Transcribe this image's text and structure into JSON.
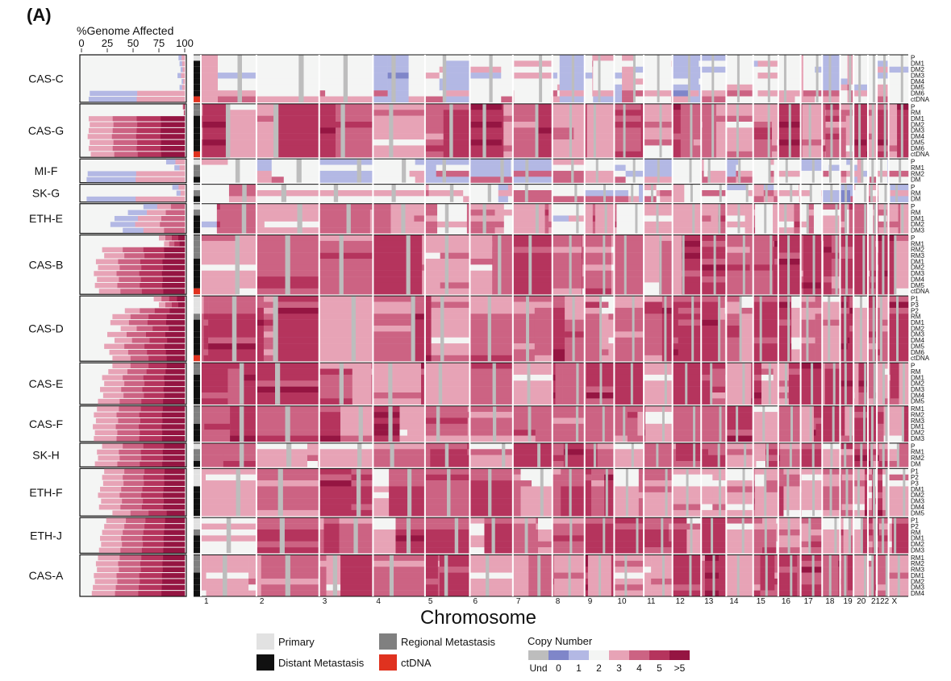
{
  "figure": {
    "panel_label": "(A)",
    "pct_axis_title": "%Genome Affected",
    "pct_ticks": [
      "0",
      "25",
      "50",
      "75",
      "100"
    ],
    "xlabel": "Chromosome",
    "legend_sample_types": [
      {
        "label": "Primary",
        "color": "#e2e2e2"
      },
      {
        "label": "Regional Metastasis",
        "color": "#808080"
      },
      {
        "label": "Distant Metastasis",
        "color": "#111111"
      },
      {
        "label": "ctDNA",
        "color": "#e0321f"
      }
    ],
    "legend_cn_title": "Copy Number",
    "legend_cn": [
      {
        "label": "Und",
        "color": "#bdbdbd"
      },
      {
        "label": "0",
        "color": "#7f86c9"
      },
      {
        "label": "1",
        "color": "#b3b8e4"
      },
      {
        "label": "2",
        "color": "#f4f5f4"
      },
      {
        "label": "3",
        "color": "#e7a3b6"
      },
      {
        "label": "4",
        "color": "#cc6383"
      },
      {
        "label": "5",
        "color": "#b5345d"
      },
      {
        "label": ">5",
        "color": "#951542"
      }
    ]
  },
  "chart_data": {
    "type": "heatmap",
    "title": "",
    "xlabel": "Chromosome",
    "chromosomes": [
      "1",
      "2",
      "3",
      "4",
      "5",
      "6",
      "7",
      "8",
      "9",
      "10",
      "11",
      "12",
      "13",
      "14",
      "15",
      "16",
      "17",
      "18",
      "19",
      "20",
      "21",
      "22",
      "X"
    ],
    "pct_axis": {
      "label": "%Genome Affected",
      "range": [
        0,
        100
      ],
      "ticks": [
        0,
        25,
        50,
        75,
        100
      ]
    },
    "patients": [
      {
        "name": "CAS-C",
        "samples": [
          "P",
          "DM1",
          "DM2",
          "DM3",
          "DM4",
          "DM5",
          "DM6",
          "ctDNA"
        ],
        "types": [
          "P",
          "D",
          "D",
          "D",
          "D",
          "D",
          "D",
          "C"
        ],
        "pct": [
          6,
          5,
          4,
          7,
          3,
          5,
          92,
          93
        ],
        "level": 1
      },
      {
        "name": "CAS-G",
        "samples": [
          "P",
          "RM",
          "DM1",
          "DM2",
          "DM3",
          "DM4",
          "DM5",
          "DM6",
          "ctDNA"
        ],
        "types": [
          "R",
          "R",
          "D",
          "D",
          "D",
          "D",
          "D",
          "D",
          "C"
        ],
        "pct": [
          2,
          1,
          93,
          92,
          93,
          94,
          92,
          93,
          91
        ],
        "level": 4
      },
      {
        "name": "MI-F",
        "samples": [
          "P",
          "RM1",
          "RM2",
          "DM"
        ],
        "types": [
          "P",
          "R",
          "R",
          "D"
        ],
        "pct": [
          18,
          10,
          94,
          95
        ],
        "level": 2
      },
      {
        "name": "SK-G",
        "samples": [
          "P",
          "RM",
          "DM"
        ],
        "types": [
          "P",
          "R",
          "D"
        ],
        "pct": [
          12,
          8,
          95
        ],
        "level": 2
      },
      {
        "name": "ETH-E",
        "samples": [
          "P",
          "RM",
          "DM1",
          "DM2",
          "DM3"
        ],
        "types": [
          "P",
          "R",
          "D",
          "D",
          "D"
        ],
        "pct": [
          40,
          55,
          68,
          72,
          60
        ],
        "level": 3
      },
      {
        "name": "CAS-B",
        "samples": [
          "P",
          "RM1",
          "RM2",
          "RM3",
          "DM1",
          "DM2",
          "DM3",
          "DM4",
          "DM5",
          "ctDNA"
        ],
        "types": [
          "R",
          "R",
          "R",
          "R",
          "D",
          "D",
          "D",
          "D",
          "D",
          "C"
        ],
        "pct": [
          25,
          20,
          80,
          78,
          86,
          84,
          88,
          85,
          87,
          83
        ],
        "level": 4
      },
      {
        "name": "CAS-D",
        "samples": [
          "P1",
          "P3",
          "P2",
          "RM",
          "DM1",
          "DM2",
          "DM3",
          "DM4",
          "DM5",
          "DM6",
          "ctDNA"
        ],
        "types": [
          "P",
          "P",
          "P",
          "R",
          "D",
          "D",
          "D",
          "D",
          "D",
          "D",
          "C"
        ],
        "pct": [
          30,
          25,
          58,
          70,
          72,
          62,
          75,
          68,
          78,
          73,
          70
        ],
        "level": 4
      },
      {
        "name": "CAS-E",
        "samples": [
          "P",
          "RM",
          "DM1",
          "DM2",
          "DM3",
          "DM4",
          "DM5"
        ],
        "types": [
          "R",
          "R",
          "D",
          "D",
          "D",
          "D",
          "D"
        ],
        "pct": [
          70,
          74,
          80,
          78,
          82,
          79,
          84
        ],
        "level": 4
      },
      {
        "name": "CAS-F",
        "samples": [
          "RM1",
          "RM2",
          "RM3",
          "DM1",
          "DM2",
          "DM3"
        ],
        "types": [
          "R",
          "R",
          "R",
          "D",
          "D",
          "D"
        ],
        "pct": [
          85,
          88,
          86,
          89,
          87,
          88
        ],
        "level": 4
      },
      {
        "name": "SK-H",
        "samples": [
          "P",
          "RM1",
          "RM2",
          "DM"
        ],
        "types": [
          "P",
          "R",
          "R",
          "D"
        ],
        "pct": [
          80,
          85,
          84,
          87
        ],
        "level": 4
      },
      {
        "name": "ETH-F",
        "samples": [
          "P1",
          "P2",
          "P3",
          "DM1",
          "DM2",
          "DM3",
          "DM4",
          "DM5"
        ],
        "types": [
          "P",
          "P",
          "P",
          "D",
          "D",
          "D",
          "D",
          "D"
        ],
        "pct": [
          78,
          80,
          79,
          82,
          84,
          81,
          83,
          70
        ],
        "level": 4
      },
      {
        "name": "ETH-J",
        "samples": [
          "P1",
          "P2",
          "RM",
          "DM1",
          "DM2",
          "DM3"
        ],
        "types": [
          "P",
          "P",
          "R",
          "D",
          "D",
          "D"
        ],
        "pct": [
          76,
          78,
          80,
          82,
          81,
          83
        ],
        "level": 4
      },
      {
        "name": "CAS-A",
        "samples": [
          "RM1",
          "RM2",
          "RM3",
          "DM1",
          "DM2",
          "DM3",
          "DM4"
        ],
        "types": [
          "R",
          "R",
          "R",
          "D",
          "D",
          "D",
          "D"
        ],
        "pct": [
          84,
          86,
          85,
          88,
          87,
          89,
          90
        ],
        "level": 4
      }
    ]
  }
}
